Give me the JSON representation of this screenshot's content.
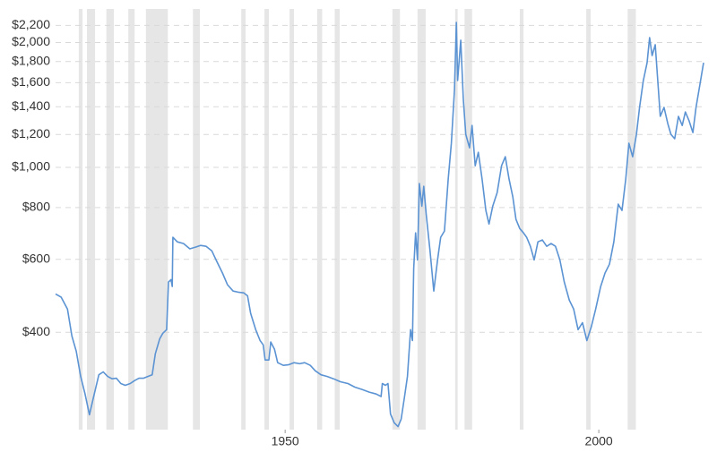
{
  "chart_data": {
    "type": "line",
    "log_y": true,
    "grid": true,
    "xlim": [
      1913.4,
      2016.7
    ],
    "xticks": [
      1950,
      2000
    ],
    "ylim": [
      233,
      2351
    ],
    "yticks": [
      {
        "value": 400,
        "label": "$400"
      },
      {
        "value": 600,
        "label": "$600"
      },
      {
        "value": 800,
        "label": "$800"
      },
      {
        "value": 1000,
        "label": "$1,000"
      },
      {
        "value": 1200,
        "label": "$1,200"
      },
      {
        "value": 1400,
        "label": "$1,400"
      },
      {
        "value": 1600,
        "label": "$1,600"
      },
      {
        "value": 1800,
        "label": "$1,800"
      },
      {
        "value": 2000,
        "label": "$2,000"
      },
      {
        "value": 2200,
        "label": "$2,200"
      }
    ],
    "band_color": "#e6e6e6",
    "bands": [
      [
        1917.1,
        1917.7
      ],
      [
        1918.4,
        1919.7
      ],
      [
        1921.5,
        1922.7
      ],
      [
        1925.0,
        1926.0
      ],
      [
        1927.8,
        1931.3
      ],
      [
        1935.3,
        1936.4
      ],
      [
        1943.0,
        1943.7
      ],
      [
        1946.7,
        1947.4
      ],
      [
        1950.7,
        1951.4
      ],
      [
        1955.1,
        1955.9
      ],
      [
        1957.9,
        1958.7
      ],
      [
        1967.1,
        1968.3
      ],
      [
        1971.1,
        1972.4
      ],
      [
        1977.1,
        1977.5
      ],
      [
        1978.6,
        1979.8
      ],
      [
        1987.4,
        1988.0
      ],
      [
        1998.0,
        1998.7
      ],
      [
        2004.6,
        2005.9
      ]
    ],
    "x": [
      1913.4,
      1914.3,
      1915.3,
      1916.0,
      1916.7,
      1917.4,
      1918.1,
      1918.8,
      1919.4,
      1920.3,
      1921.0,
      1921.7,
      1922.4,
      1923.1,
      1923.8,
      1924.5,
      1925.3,
      1926.0,
      1926.7,
      1927.4,
      1928.1,
      1928.8,
      1929.3,
      1930.0,
      1930.5,
      1931.1,
      1931.4,
      1931.8,
      1932.0,
      1932.1,
      1932.8,
      1933.8,
      1934.8,
      1935.7,
      1936.5,
      1937.4,
      1938.3,
      1939.1,
      1940.0,
      1940.8,
      1941.7,
      1942.5,
      1943.4,
      1944.0,
      1944.5,
      1945.3,
      1946.0,
      1946.5,
      1946.8,
      1947.4,
      1947.7,
      1948.3,
      1948.8,
      1949.7,
      1950.5,
      1951.4,
      1952.3,
      1953.1,
      1954.0,
      1954.8,
      1955.7,
      1956.7,
      1957.7,
      1958.8,
      1960.0,
      1961.1,
      1962.3,
      1963.4,
      1964.5,
      1965.3,
      1965.5,
      1966.0,
      1966.4,
      1966.8,
      1967.4,
      1968.0,
      1968.5,
      1969.1,
      1969.5,
      1970.0,
      1970.3,
      1970.5,
      1970.8,
      1971.1,
      1971.4,
      1971.8,
      1972.1,
      1972.5,
      1973.1,
      1973.7,
      1974.3,
      1974.8,
      1975.4,
      1976.0,
      1976.5,
      1977.0,
      1977.3,
      1977.5,
      1978.0,
      1978.4,
      1978.8,
      1979.4,
      1979.8,
      1980.3,
      1980.8,
      1981.4,
      1982.0,
      1982.5,
      1983.1,
      1983.8,
      1984.5,
      1985.1,
      1985.7,
      1986.3,
      1986.8,
      1987.4,
      1988.0,
      1988.5,
      1989.1,
      1989.7,
      1990.3,
      1991.0,
      1991.7,
      1992.4,
      1993.1,
      1993.8,
      1994.5,
      1995.3,
      1996.0,
      1996.7,
      1997.4,
      1998.1,
      1998.8,
      1999.5,
      2000.3,
      2001.0,
      2001.7,
      2002.4,
      2003.1,
      2003.7,
      2004.3,
      2004.8,
      2005.4,
      2006.0,
      2006.5,
      2007.1,
      2007.7,
      2008.1,
      2008.5,
      2009.0,
      2009.4,
      2009.8,
      2010.4,
      2011.0,
      2011.5,
      2012.1,
      2012.7,
      2013.3,
      2013.8,
      2014.4,
      2015.0,
      2015.5,
      2016.1,
      2016.7
    ],
    "series": [
      {
        "color": "#5b93d3",
        "values": [
          495,
          486,
          455,
          392,
          360,
          313,
          284,
          253,
          277,
          316,
          321,
          313,
          309,
          310,
          301,
          298,
          301,
          306,
          310,
          310,
          313,
          316,
          355,
          386,
          398,
          406,
          529,
          536,
          516,
          678,
          661,
          655,
          636,
          642,
          648,
          645,
          629,
          593,
          556,
          521,
          503,
          500,
          498,
          490,
          444,
          406,
          382,
          373,
          343,
          343,
          379,
          364,
          338,
          333,
          334,
          338,
          336,
          338,
          333,
          323,
          316,
          313,
          309,
          304,
          301,
          295,
          291,
          287,
          284,
          280,
          301,
          298,
          301,
          254,
          242,
          237,
          247,
          284,
          313,
          406,
          382,
          570,
          695,
          598,
          914,
          806,
          900,
          768,
          629,
          503,
          598,
          678,
          702,
          937,
          1143,
          1540,
          2236,
          1619,
          2026,
          1466,
          1201,
          1115,
          1262,
          1009,
          1087,
          937,
          787,
          730,
          806,
          869,
          1009,
          1061,
          937,
          848,
          749,
          712,
          695,
          678,
          645,
          598,
          661,
          668,
          645,
          655,
          645,
          598,
          529,
          478,
          455,
          406,
          422,
          382,
          412,
          455,
          516,
          556,
          584,
          661,
          815,
          787,
          937,
          1143,
          1061,
          1201,
          1395,
          1619,
          1788,
          2056,
          1860,
          1976,
          1619,
          1327,
          1395,
          1275,
          1201,
          1172,
          1327,
          1262,
          1360,
          1294,
          1213,
          1395,
          1578,
          1788
        ]
      }
    ]
  }
}
